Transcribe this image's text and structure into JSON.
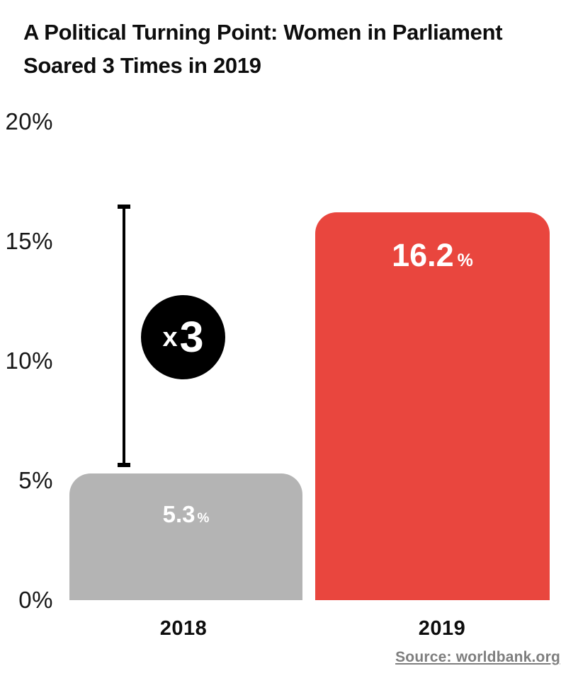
{
  "title": {
    "line1": "A Political Turning Point: Women in Parliament",
    "line2": "Soared 3 Times in 2019"
  },
  "chart_data": {
    "type": "bar",
    "title": "A Political Turning Point: Women in Parliament Soared 3 Times in 2019",
    "categories": [
      "2018",
      "2019"
    ],
    "values": [
      5.3,
      16.2
    ],
    "bar_value_labels": [
      {
        "value": "5.3",
        "suffix": "%"
      },
      {
        "value": "16.2",
        "suffix": "%"
      }
    ],
    "colors": [
      "#B4B4B4",
      "#E9463E"
    ],
    "label_color": "#FFFFFF",
    "annotation_color": "#000000",
    "ylim": [
      0,
      20
    ],
    "yticks": [
      {
        "value": 20,
        "label": "20%"
      },
      {
        "value": 15,
        "label": "15%"
      },
      {
        "value": 10,
        "label": "10%"
      },
      {
        "value": 5,
        "label": "5%"
      },
      {
        "value": 0,
        "label": "0%"
      }
    ],
    "grid": false,
    "legend": false,
    "annotation": {
      "symbol": "x",
      "value": "3"
    }
  },
  "source": {
    "text": "Source: worldbank.org"
  }
}
